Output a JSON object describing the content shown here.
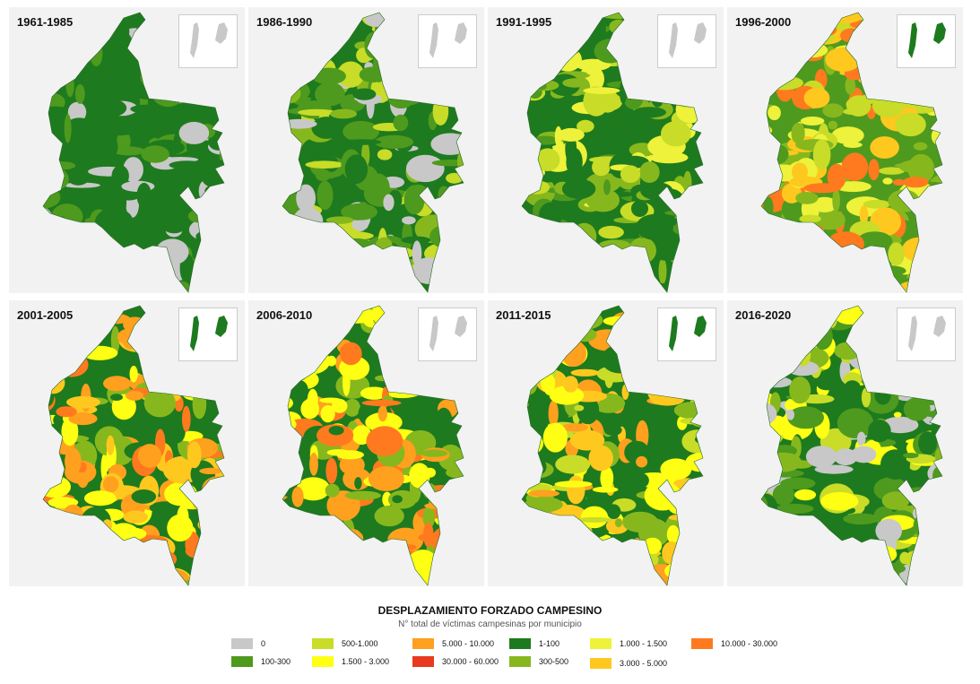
{
  "colors": {
    "c0": "#c8c8c8",
    "c1_100": "#1e7a1e",
    "c100_300": "#4e9a1e",
    "c300_500": "#86b81e",
    "c500_1000": "#c8dc28",
    "c1000_1500": "#eef23a",
    "c1500_3000": "#ffff14",
    "c3000_5000": "#ffc81e",
    "c5000_10000": "#ffa01e",
    "c10000_30000": "#ff7a1e",
    "c30000_60000": "#e83a1e",
    "panel_bg": "#f2f2f2"
  },
  "panels": [
    {
      "label": "1961-1985",
      "palette": [
        "c1_100",
        "c1_100",
        "c1_100",
        "c1_100",
        "c100_300",
        "c0"
      ],
      "inset_color": "c0"
    },
    {
      "label": "1986-1990",
      "palette": [
        "c1_100",
        "c100_300",
        "c100_300",
        "c300_500",
        "c500_1000",
        "c0"
      ],
      "inset_color": "c0"
    },
    {
      "label": "1991-1995",
      "palette": [
        "c1_100",
        "c1_100",
        "c100_300",
        "c300_500",
        "c500_1000",
        "c1000_1500"
      ],
      "inset_color": "c0"
    },
    {
      "label": "1996-2000",
      "palette": [
        "c100_300",
        "c300_500",
        "c500_1000",
        "c1000_1500",
        "c3000_5000",
        "c10000_30000"
      ],
      "inset_color": "c1_100"
    },
    {
      "label": "2001-2005",
      "palette": [
        "c1_100",
        "c1500_3000",
        "c3000_5000",
        "c5000_10000",
        "c10000_30000",
        "c300_500"
      ],
      "inset_color": "c1_100"
    },
    {
      "label": "2006-2010",
      "palette": [
        "c1_100",
        "c1500_3000",
        "c1500_3000",
        "c5000_10000",
        "c10000_30000",
        "c300_500"
      ],
      "inset_color": "c0"
    },
    {
      "label": "2011-2015",
      "palette": [
        "c1_100",
        "c300_500",
        "c500_1000",
        "c1500_3000",
        "c3000_5000",
        "c5000_10000"
      ],
      "inset_color": "c1_100"
    },
    {
      "label": "2016-2020",
      "palette": [
        "c1_100",
        "c100_300",
        "c300_500",
        "c500_1000",
        "c1500_3000",
        "c0"
      ],
      "inset_color": "c0"
    }
  ],
  "legend": {
    "title": "DESPLAZAMIENTO FORZADO CAMPESINO",
    "subtitle": "N° total de víctimas campesinas por municipio",
    "items": [
      {
        "label": "0",
        "color": "c0"
      },
      {
        "label": "100-300",
        "color": "c100_300"
      },
      {
        "label": "500-1.000",
        "color": "c500_1000"
      },
      {
        "label": "1.500 - 3.000",
        "color": "c1500_3000"
      },
      {
        "label": "5.000 - 10.000",
        "color": "c5000_10000"
      },
      {
        "label": "30.000 - 60.000",
        "color": "c30000_60000"
      },
      {
        "label": "1-100",
        "color": "c1_100"
      },
      {
        "label": "300-500",
        "color": "c300_500"
      },
      {
        "label": "1.000 - 1.500",
        "color": "c1000_1500"
      },
      {
        "label": "3.000 - 5.000",
        "color": "c3000_5000"
      },
      {
        "label": "10.000 - 30.000",
        "color": "c10000_30000"
      }
    ]
  }
}
